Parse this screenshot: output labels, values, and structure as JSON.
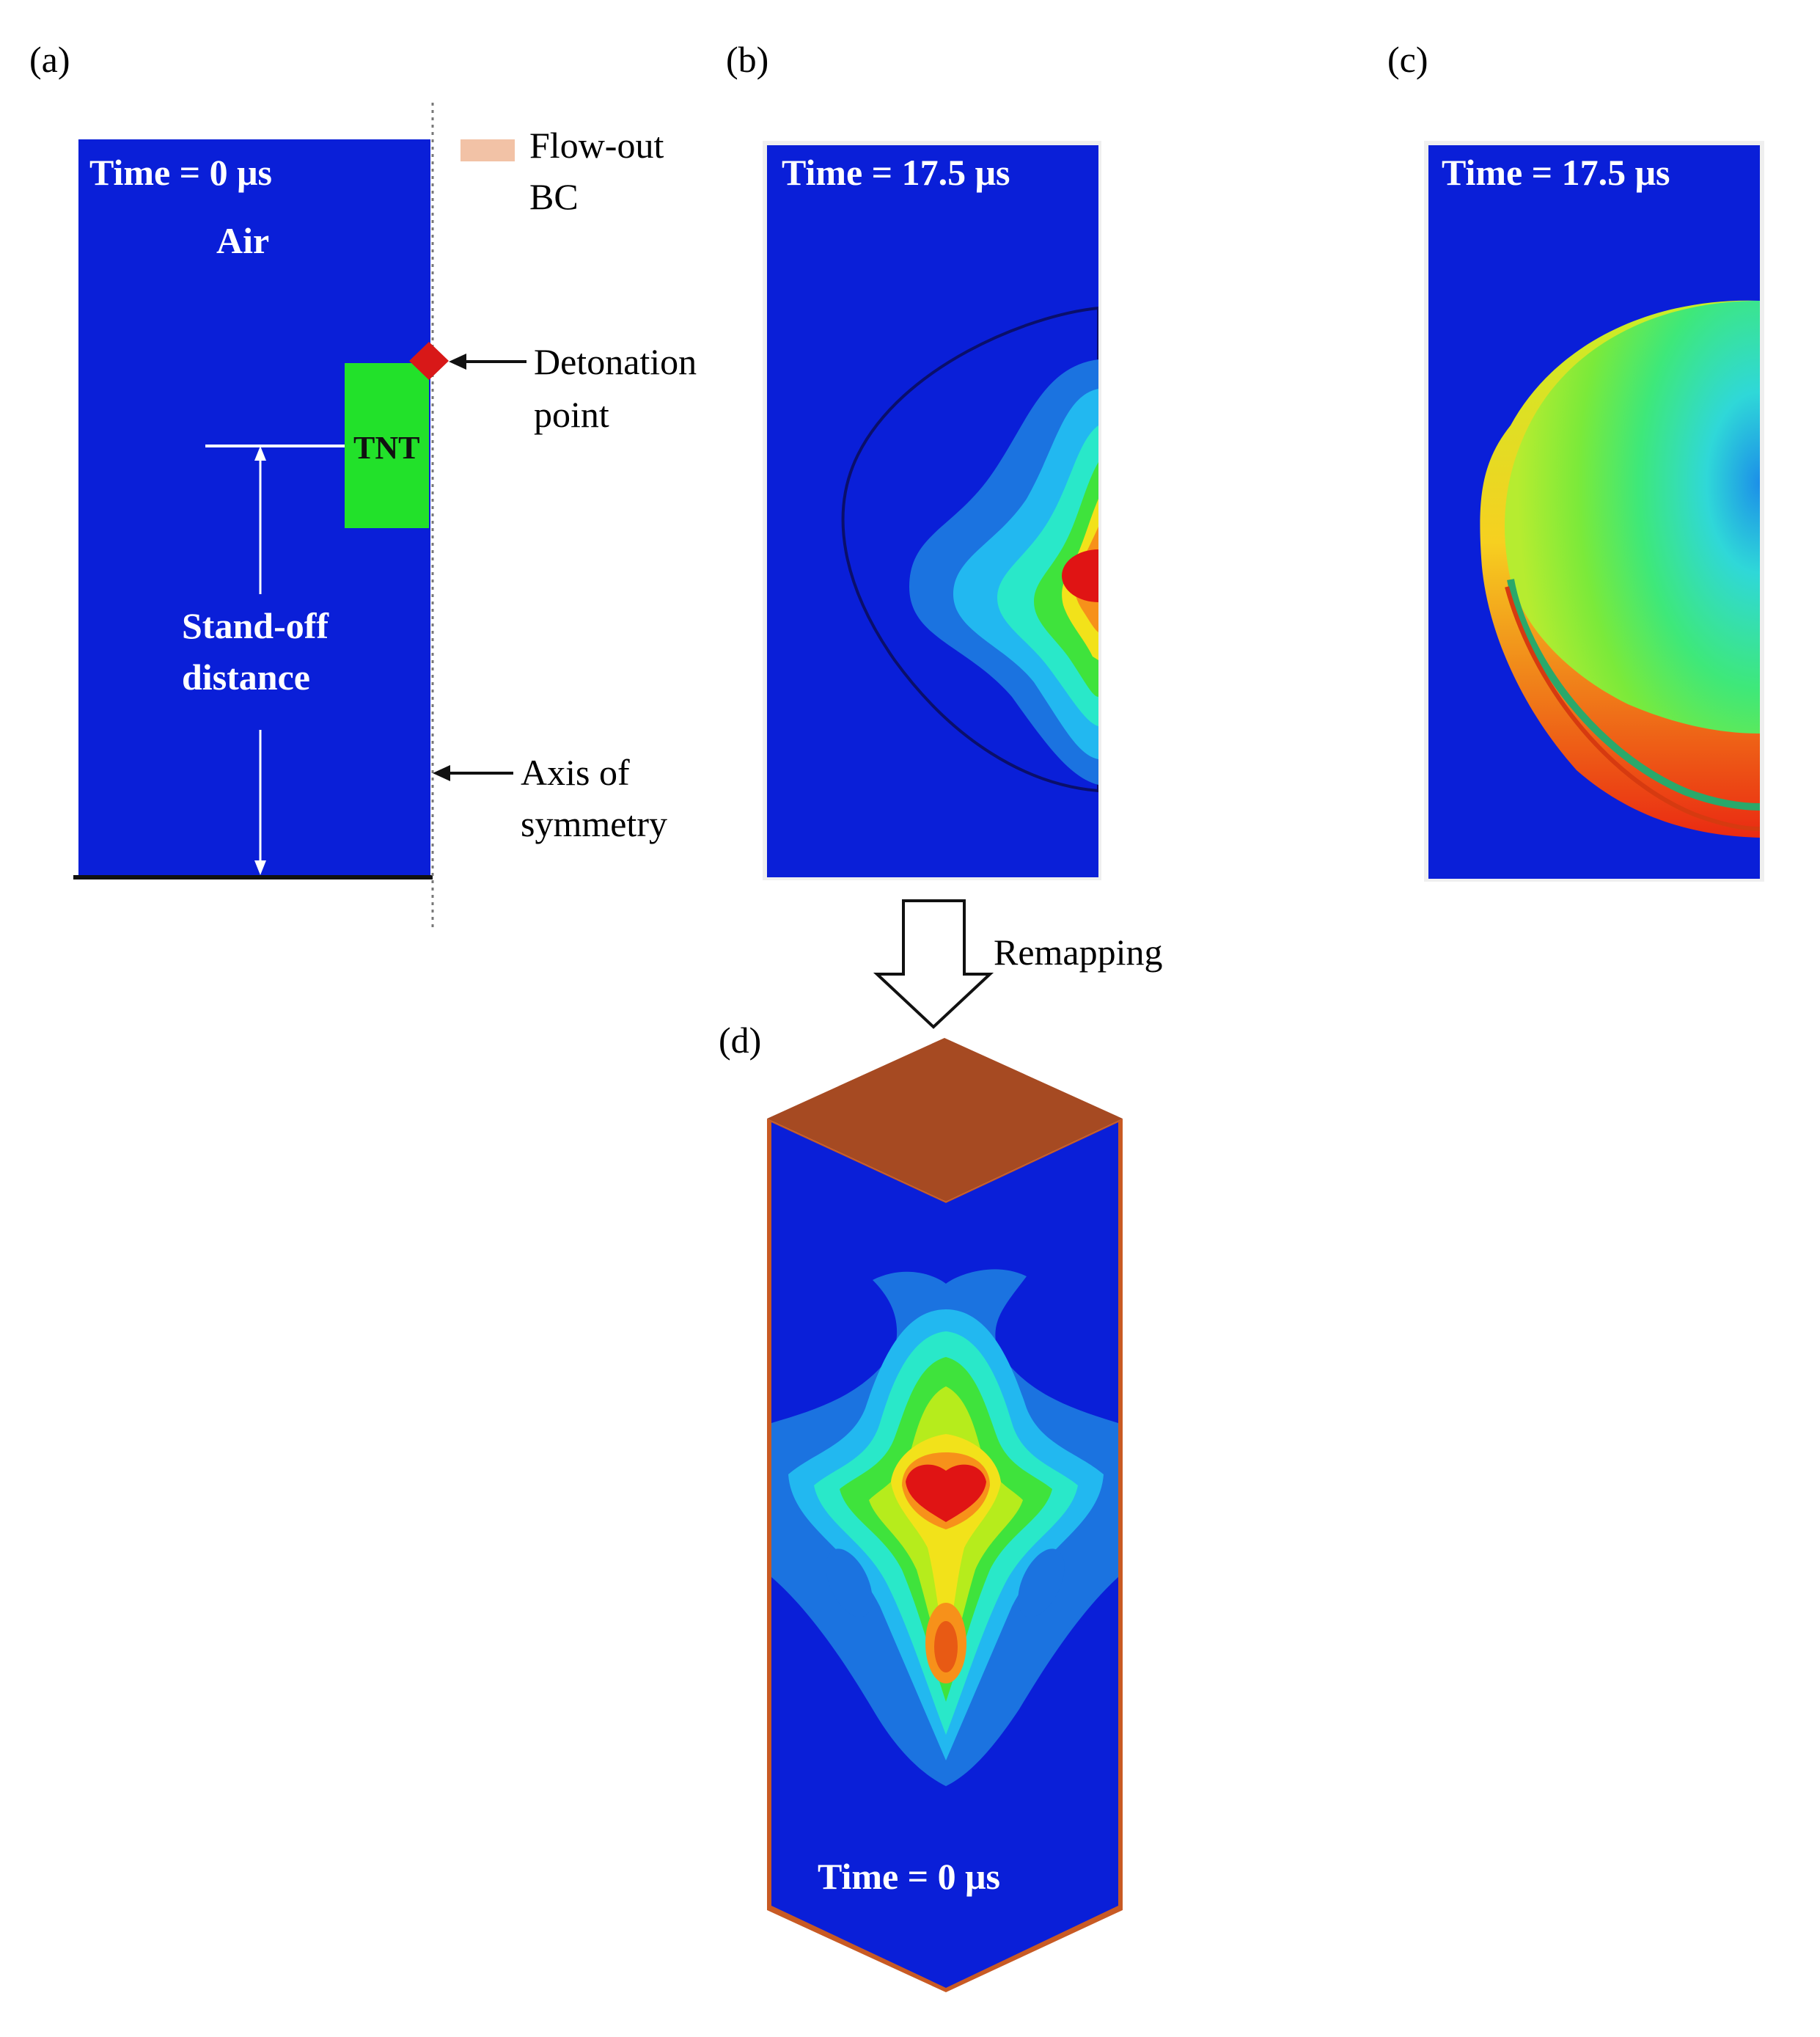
{
  "panels": {
    "a": {
      "letter": "(a)",
      "time": "Time = 0 μs",
      "medium": "Air",
      "charge": "TNT",
      "standoff_line1": "Stand-off",
      "standoff_line2": "distance",
      "legend_line1": "Flow-out",
      "legend_line2": "BC",
      "detonation_line1": "Detonation",
      "detonation_line2": "point",
      "axis_line1": "Axis of",
      "axis_line2": "symmetry"
    },
    "b": {
      "letter": "(b)",
      "time": "Time = 17.5 μs"
    },
    "c": {
      "letter": "(c)",
      "time": "Time = 17.5 μs"
    },
    "d": {
      "letter": "(d)",
      "time": "Time = 0 μs"
    }
  },
  "remap_label": "Remapping",
  "colors": {
    "domain_blue": "#0a1fd8",
    "tnt_green": "#22e12a",
    "detonation_red": "#d81818",
    "flowout_bc": "#f2c2a6",
    "top_face": "#a64a22",
    "contour_levels": [
      "#1b73e0",
      "#22b8f0",
      "#29e8c9",
      "#3fe33c",
      "#b6ec1c",
      "#f2e21a",
      "#f7911a",
      "#e01414"
    ]
  }
}
